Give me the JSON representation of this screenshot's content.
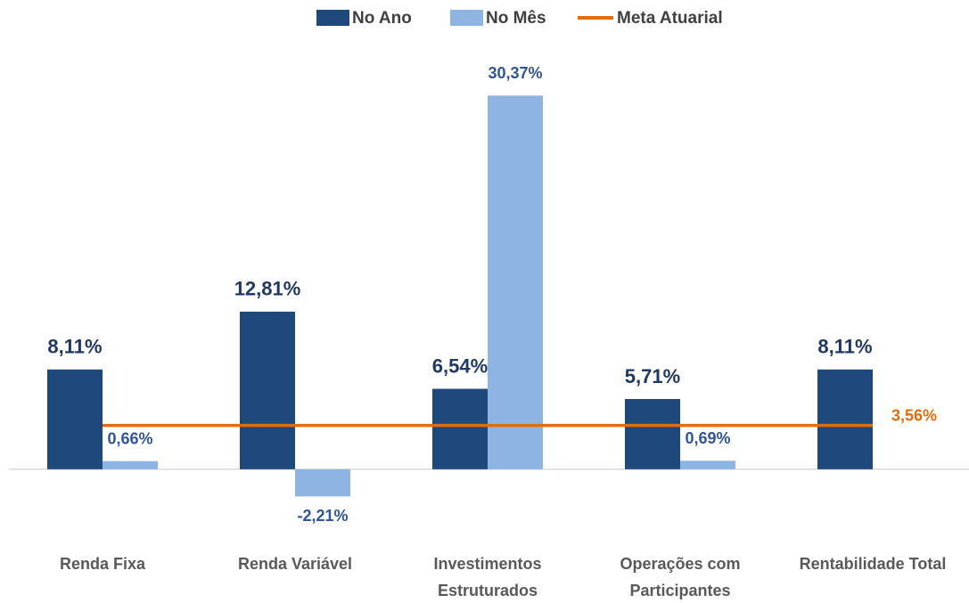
{
  "chart_data": {
    "type": "bar",
    "categories": [
      "Renda Fixa",
      "Renda Variável",
      "Investimentos Estruturados",
      "Operações com Participantes",
      "Rentabilidade Total"
    ],
    "series": [
      {
        "name": "No Ano",
        "color": "#1f497d",
        "values": [
          8.11,
          12.81,
          6.54,
          5.71,
          8.11
        ],
        "value_labels": [
          "8,11%",
          "12,81%",
          "6,54%",
          "5,71%",
          "8,11%"
        ]
      },
      {
        "name": "No Mês",
        "color": "#8eb4e3",
        "values": [
          0.66,
          -2.21,
          30.37,
          0.69,
          null
        ],
        "value_labels": [
          "0,66%",
          "-2,21%",
          "30,37%",
          "0,69%",
          null
        ]
      }
    ],
    "meta": {
      "name": "Meta Atuarial",
      "color": "#e46c0a",
      "value": 3.56,
      "value_label": "3,56%"
    },
    "ylim": [
      -4.5,
      33
    ]
  }
}
